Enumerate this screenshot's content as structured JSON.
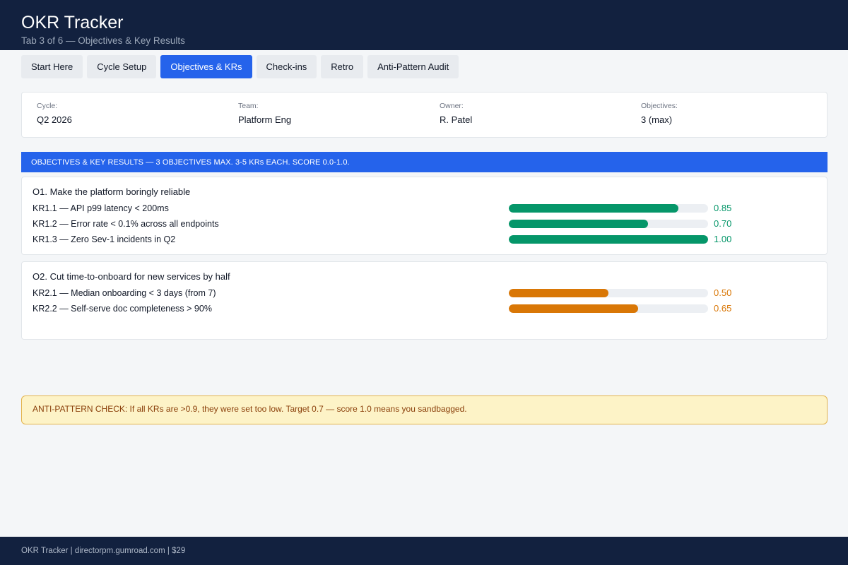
{
  "header": {
    "title": "OKR Tracker",
    "subtitle": "Tab 3 of 6 — Objectives & Key Results"
  },
  "tabs": [
    {
      "label": "Start Here",
      "active": false
    },
    {
      "label": "Cycle Setup",
      "active": false
    },
    {
      "label": "Objectives & KRs",
      "active": true
    },
    {
      "label": "Check-ins",
      "active": false
    },
    {
      "label": "Retro",
      "active": false
    },
    {
      "label": "Anti-Pattern Audit",
      "active": false
    }
  ],
  "info": {
    "cycle_label": "Cycle:",
    "cycle_value": "Q2 2026",
    "team_label": "Team:",
    "team_value": "Platform Eng",
    "owner_label": "Owner:",
    "owner_value": "R. Patel",
    "objectives_label": "Objectives:",
    "objectives_value": "3 (max)"
  },
  "section": {
    "heading": "OBJECTIVES & KEY RESULTS — 3 OBJECTIVES MAX. 3-5 KRs EACH. SCORE 0.0-1.0."
  },
  "objectives": [
    {
      "title": "O1. Make the platform boringly reliable",
      "color": "#059669",
      "krs": [
        {
          "label": "KR1.1 — API p99 latency < 200ms",
          "score": 0.85,
          "score_text": "0.85"
        },
        {
          "label": "KR1.2 — Error rate < 0.1% across all endpoints",
          "score": 0.7,
          "score_text": "0.70"
        },
        {
          "label": "KR1.3 — Zero Sev-1 incidents in Q2",
          "score": 1.0,
          "score_text": "1.00"
        }
      ]
    },
    {
      "title": "O2. Cut time-to-onboard for new services by half",
      "color": "#d97706",
      "krs": [
        {
          "label": "KR2.1 — Median onboarding < 3 days (from 7)",
          "score": 0.5,
          "score_text": "0.50"
        },
        {
          "label": "KR2.2 — Self-serve doc completeness > 90%",
          "score": 0.65,
          "score_text": "0.65"
        }
      ]
    }
  ],
  "alert": {
    "text": "ANTI-PATTERN CHECK: If all KRs are >0.9, they were set too low. Target 0.7 — score 1.0 means you sandbagged."
  },
  "footer": {
    "text": "OKR Tracker  |  directorpm.gumroad.com  |  $29"
  }
}
